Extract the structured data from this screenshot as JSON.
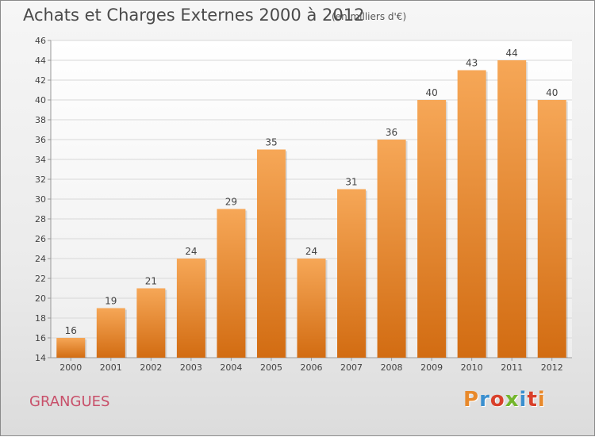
{
  "title": "Achats et Charges Externes 2000 à 2012",
  "unit_note": "(en milliers d'€)",
  "commune": "GRANGUES",
  "logo_text": "Proxiti",
  "logo_colors": [
    "#e8892b",
    "#3a8fcf",
    "#d9402b",
    "#73b62c",
    "#3a8fcf",
    "#d9402b",
    "#e8892b"
  ],
  "colors": {
    "bar_top": "#f6a757",
    "bar_bottom": "#d26c12",
    "grid": "#d8d8d8",
    "axis": "#999999",
    "text": "#444444",
    "commune": "#c8506a"
  },
  "chart_data": {
    "type": "bar",
    "categories": [
      "2000",
      "2001",
      "2002",
      "2003",
      "2004",
      "2005",
      "2006",
      "2007",
      "2008",
      "2009",
      "2010",
      "2011",
      "2012"
    ],
    "values": [
      16,
      19,
      21,
      24,
      29,
      35,
      24,
      31,
      36,
      40,
      43,
      44,
      40
    ],
    "ylim": [
      14,
      46
    ],
    "yticks": [
      14,
      16,
      18,
      20,
      22,
      24,
      26,
      28,
      30,
      32,
      34,
      36,
      38,
      40,
      42,
      44,
      46
    ],
    "grid": true,
    "data_labels": true
  }
}
